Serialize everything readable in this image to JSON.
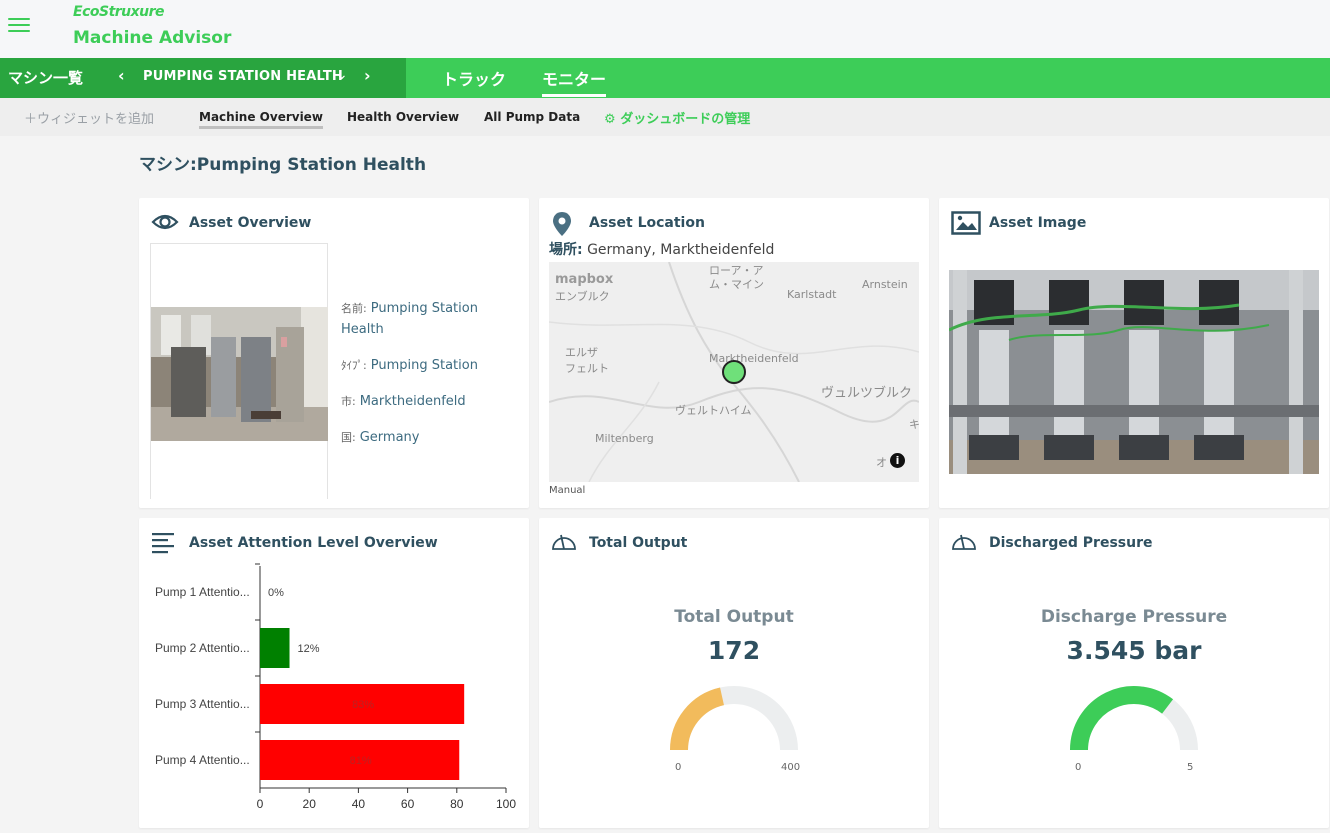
{
  "header": {
    "brand": "EcoStruxure",
    "app_title": "Machine Advisor",
    "brand_color": "#3dcd58"
  },
  "nav": {
    "machine_list": "マシン一覧",
    "station": "PUMPING STATION HEALTH",
    "tabs": [
      {
        "label": "トラック"
      },
      {
        "label": "モニター"
      }
    ]
  },
  "subnav": {
    "add_widget": "＋ウィジェットを追加",
    "tabs": [
      {
        "label": "Machine Overview"
      },
      {
        "label": "Health Overview"
      },
      {
        "label": "All Pump Data"
      }
    ],
    "manage": "ダッシュボードの管理"
  },
  "page": {
    "title": "マシン:Pumping Station Health"
  },
  "asset_overview": {
    "title": "Asset Overview",
    "fields": [
      {
        "label": "名前:",
        "value": "Pumping Station Health"
      },
      {
        "label": "ﾀｲﾌﾟ:",
        "value": "Pumping Station"
      },
      {
        "label": "市:",
        "value": "Marktheidenfeld"
      },
      {
        "label": "国:",
        "value": "Germany"
      }
    ]
  },
  "asset_location": {
    "title": "Asset Location",
    "place_label": "場所:",
    "place_value": "Germany, Marktheidenfeld",
    "map_labels": [
      "mapbox",
      "ローア・ア",
      "ム・マイン",
      "Karlstadt",
      "Arnstein",
      "エンブルク",
      "エルザ",
      "フェルト",
      "Marktheidenfeld",
      "ヴュルツブルク",
      "ヴェルトハイム",
      "Miltenberg",
      "キ",
      "オ"
    ],
    "mode": "Manual"
  },
  "asset_image": {
    "title": "Asset Image"
  },
  "attention": {
    "title": "Asset Attention Level Overview",
    "chart_data": {
      "type": "bar",
      "orientation": "horizontal",
      "categories": [
        "Pump 1 Attentio...",
        "Pump 2 Attentio...",
        "Pump 3 Attentio...",
        "Pump 4 Attentio..."
      ],
      "values": [
        0,
        12,
        83,
        81
      ],
      "value_labels": [
        "0%",
        "12%",
        "83%",
        "81%"
      ],
      "colors": [
        "#008000",
        "#008000",
        "#ff0000",
        "#ff0000"
      ],
      "xlim": [
        0,
        100
      ],
      "xticks": [
        "0",
        "20",
        "40",
        "60",
        "80",
        "100"
      ]
    }
  },
  "total_output": {
    "title": "Total Output",
    "label": "Total Output",
    "value": "172",
    "min": "0",
    "max": "400",
    "fraction": 0.43,
    "color": "#f2bb5c"
  },
  "discharged_pressure": {
    "title": "Discharged Pressure",
    "label": "Discharge Pressure",
    "value": "3.545 bar",
    "min": "0",
    "max": "5",
    "fraction": 0.709,
    "color": "#3dcd58"
  }
}
